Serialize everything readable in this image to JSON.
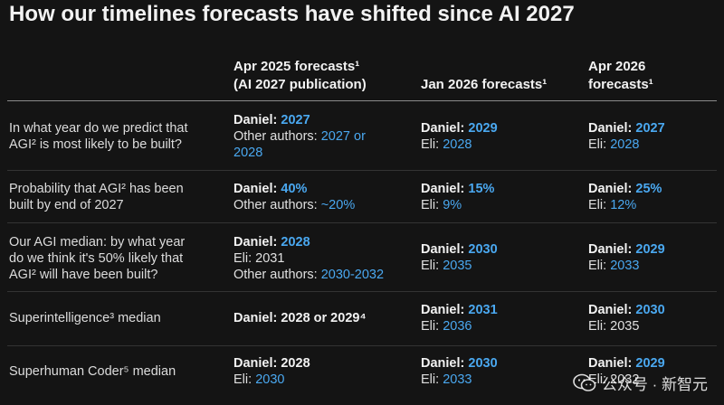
{
  "title": "How our timelines forecasts have shifted since AI 2027",
  "headers": {
    "col1_line1": "Apr 2025 forecasts¹",
    "col1_line2": "(AI 2027 publication)",
    "col2": "Jan 2026 forecasts¹",
    "col3_line1": "Apr 2026",
    "col3_line2": "forecasts¹"
  },
  "rows": [
    {
      "question": [
        "In what year do we predict that",
        "AGI² is most likely to be built?"
      ],
      "apr2025": {
        "daniel_label": "Daniel:",
        "daniel_value": "2027",
        "other_label": "Other authors:",
        "other_value_1": "2027 or",
        "other_value_2": "2028"
      },
      "jan2026": {
        "daniel_label": "Daniel:",
        "daniel_value": "2029",
        "eli_label": "Eli:",
        "eli_value": "2028"
      },
      "apr2026": {
        "daniel_label": "Daniel:",
        "daniel_value": "2027",
        "eli_label": "Eli:",
        "eli_value": "2028"
      }
    },
    {
      "question": [
        "Probability that AGI² has been",
        "built by end of 2027"
      ],
      "apr2025": {
        "daniel_label": "Daniel:",
        "daniel_value": "40%",
        "other_label": "Other authors:",
        "other_value": "~20%"
      },
      "jan2026": {
        "daniel_label": "Daniel:",
        "daniel_value": "15%",
        "eli_label": "Eli:",
        "eli_value": "9%"
      },
      "apr2026": {
        "daniel_label": "Daniel:",
        "daniel_value": "25%",
        "eli_label": "Eli:",
        "eli_value": "12%"
      }
    },
    {
      "question": [
        "Our AGI median: by what year",
        "do we think it's 50% likely that",
        "AGI² will have been built?"
      ],
      "apr2025": {
        "daniel_label": "Daniel:",
        "daniel_value": "2028",
        "eli_text": "Eli: 2031",
        "other_label": "Other authors:",
        "other_value": "2030-2032"
      },
      "jan2026": {
        "daniel_label": "Daniel:",
        "daniel_value": "2030",
        "eli_label": "Eli:",
        "eli_value": "2035"
      },
      "apr2026": {
        "daniel_label": "Daniel:",
        "daniel_value": "2029",
        "eli_label": "Eli:",
        "eli_value": "2033"
      }
    },
    {
      "question": [
        "Superintelligence³ median"
      ],
      "apr2025": {
        "daniel_text": "Daniel: 2028 or 2029⁴"
      },
      "jan2026": {
        "daniel_label": "Daniel:",
        "daniel_value": "2031",
        "eli_label": "Eli:",
        "eli_value": "2036"
      },
      "apr2026": {
        "daniel_label": "Daniel:",
        "daniel_value": "2030",
        "eli_text": "Eli: 2035"
      }
    },
    {
      "question": [
        "Superhuman Coder⁵ median"
      ],
      "apr2025": {
        "daniel_text": "Daniel: 2028",
        "eli_label": "Eli:",
        "eli_value": "2030"
      },
      "jan2026": {
        "daniel_label": "Daniel:",
        "daniel_value": "2030",
        "eli_label": "Eli:",
        "eli_value": "2033"
      },
      "apr2026": {
        "daniel_label": "Daniel:",
        "daniel_value": "2029",
        "eli_text": "Eli: 2032"
      }
    }
  ],
  "watermark": {
    "text": "公众号 · 新智元",
    "icon": "wechat-icon"
  }
}
